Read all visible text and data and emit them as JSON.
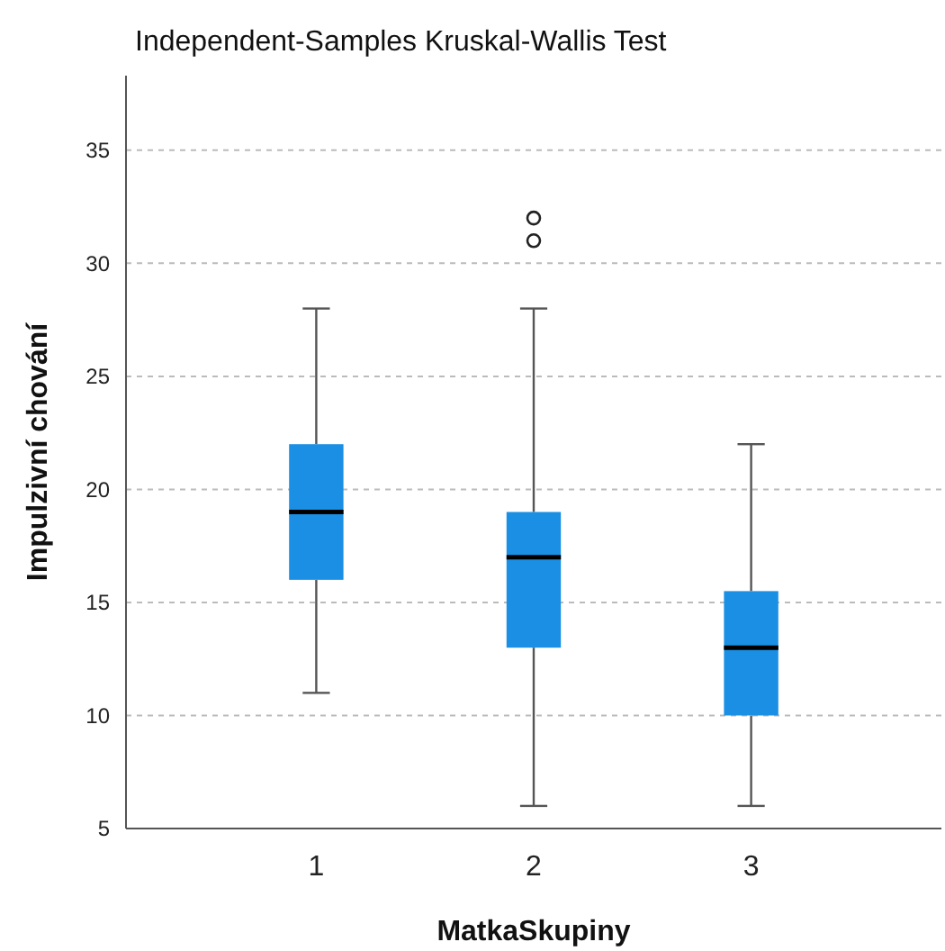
{
  "chart_data": {
    "type": "box",
    "title": "Independent-Samples Kruskal-Wallis Test",
    "xlabel": "MatkaSkupiny",
    "ylabel": "Impulzivní chování",
    "categories": [
      "1",
      "2",
      "3"
    ],
    "color": "#1a8fe3",
    "boxes": [
      {
        "low": 11,
        "q1": 16,
        "median": 19,
        "q3": 22,
        "high": 28
      },
      {
        "low": 6,
        "q1": 13,
        "median": 17,
        "q3": 19,
        "high": 28,
        "outliers": [
          31,
          32
        ]
      },
      {
        "low": 6,
        "q1": 10,
        "median": 13,
        "q3": 15.5,
        "high": 22
      }
    ],
    "ylim": [
      5,
      38.3
    ],
    "yticks": [
      5,
      10,
      15,
      20,
      25,
      30,
      35
    ],
    "grid": "y"
  }
}
